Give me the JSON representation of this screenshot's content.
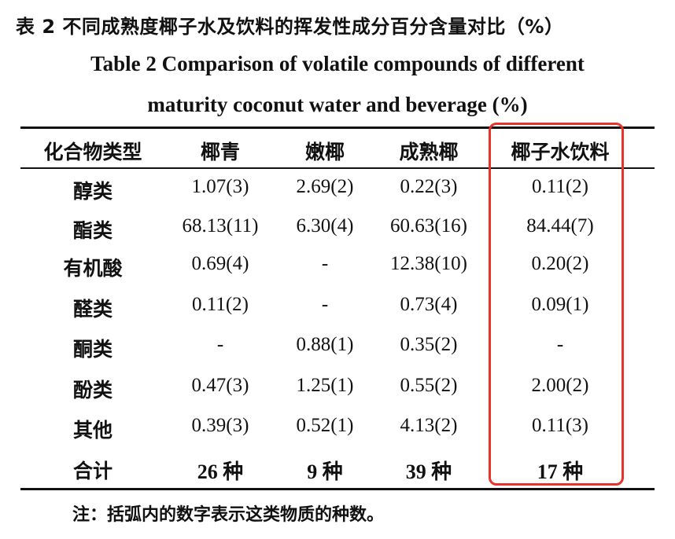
{
  "title_cn": "表 2  不同成熟度椰子水及饮料的挥发性成分百分含量对比（%）",
  "title_en_line1": "Table 2 Comparison of volatile compounds of different",
  "title_en_line2": "maturity coconut water and beverage (%)",
  "headers": [
    "化合物类型",
    "椰青",
    "嫩椰",
    "成熟椰",
    "椰子水饮料"
  ],
  "rows": [
    {
      "type": "醇类",
      "c1": "1.07(3)",
      "c2": "2.69(2)",
      "c3": "0.22(3)",
      "c4": "0.11(2)"
    },
    {
      "type": "酯类",
      "c1": "68.13(11)",
      "c2": "6.30(4)",
      "c3": "60.63(16)",
      "c4": "84.44(7)"
    },
    {
      "type": "有机酸",
      "c1": "0.69(4)",
      "c2": "-",
      "c3": "12.38(10)",
      "c4": "0.20(2)"
    },
    {
      "type": "醛类",
      "c1": "0.11(2)",
      "c2": "-",
      "c3": "0.73(4)",
      "c4": "0.09(1)"
    },
    {
      "type": "酮类",
      "c1": "-",
      "c2": "0.88(1)",
      "c3": "0.35(2)",
      "c4": "-"
    },
    {
      "type": "酚类",
      "c1": "0.47(3)",
      "c2": "1.25(1)",
      "c3": "0.55(2)",
      "c4": "2.00(2)"
    },
    {
      "type": "其他",
      "c1": "0.39(3)",
      "c2": "0.52(1)",
      "c3": "4.13(2)",
      "c4": "0.11(3)"
    }
  ],
  "total_row": {
    "type": "合计",
    "c1": "26 种",
    "c2": "9 种",
    "c3": "39 种",
    "c4": "17 种"
  },
  "note": "注：括弧内的数字表示这类物质的种数。",
  "highlight_color": "#e8322a"
}
